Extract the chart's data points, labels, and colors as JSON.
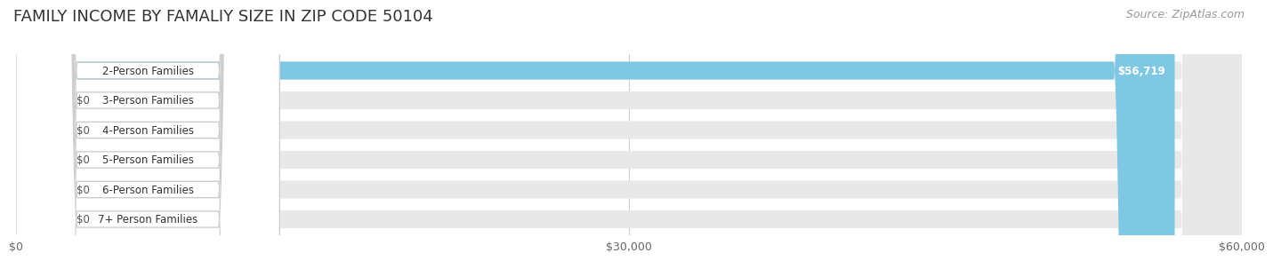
{
  "title": "FAMILY INCOME BY FAMALIY SIZE IN ZIP CODE 50104",
  "source": "Source: ZipAtlas.com",
  "categories": [
    "2-Person Families",
    "3-Person Families",
    "4-Person Families",
    "5-Person Families",
    "6-Person Families",
    "7+ Person Families"
  ],
  "values": [
    56719,
    0,
    0,
    0,
    0,
    0
  ],
  "bar_colors": [
    "#7ec8e3",
    "#c9a0dc",
    "#7dd6c0",
    "#b0b0e0",
    "#f4a0b5",
    "#f5d6a0"
  ],
  "value_labels": [
    "$56,719",
    "$0",
    "$0",
    "$0",
    "$0",
    "$0"
  ],
  "xlim": [
    0,
    60000
  ],
  "xticks": [
    0,
    30000,
    60000
  ],
  "xtick_labels": [
    "$0",
    "$30,000",
    "$60,000"
  ],
  "background_color": "#ffffff",
  "bar_bg_color": "#e8e8e8",
  "title_fontsize": 13,
  "source_fontsize": 9,
  "tick_fontsize": 9,
  "label_fontsize": 8.5,
  "value_fontsize": 8.5
}
